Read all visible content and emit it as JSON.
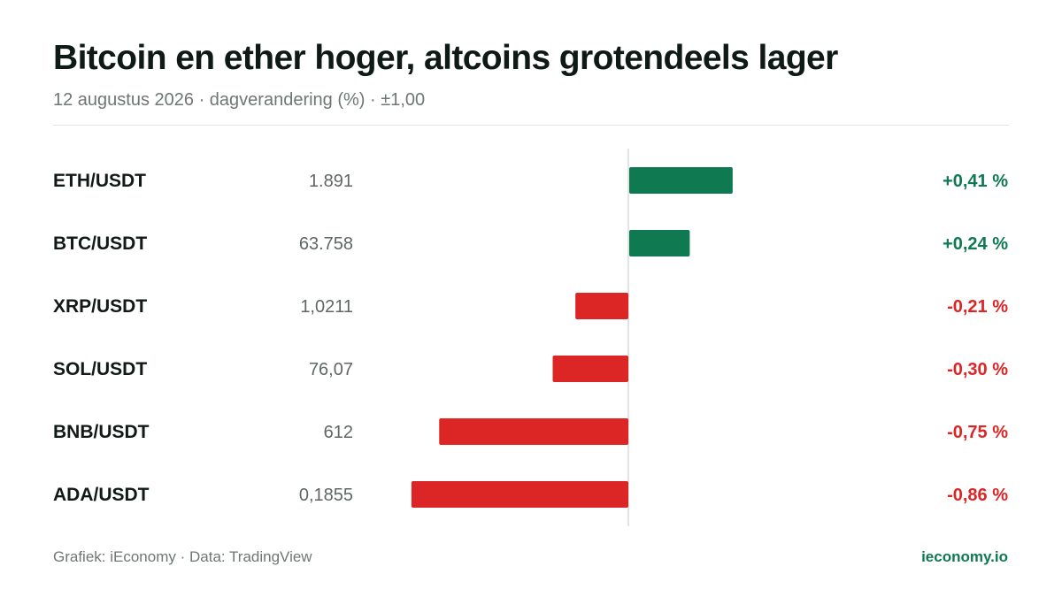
{
  "title": "Bitcoin en ether hoger, altcoins grotendeels lager",
  "subtitle": "12 augustus 2026 · dagverandering (%) · ±1,00",
  "footer": {
    "credit": "Grafiek: iEconomy · Data: TradingView",
    "site": "ieconomy.io"
  },
  "colors": {
    "positive": "#0f7a52",
    "negative": "#dc2626",
    "axis": "#d9dcda"
  },
  "chart_data": {
    "type": "bar",
    "orientation": "horizontal",
    "title": "Bitcoin en ether hoger, altcoins grotendeels lager",
    "subtitle": "12 augustus 2026 · dagverandering (%) · ±1,00",
    "xlim": [
      -1.0,
      1.0
    ],
    "grid": false,
    "categories": [
      "ETH/USDT",
      "BTC/USDT",
      "XRP/USDT",
      "SOL/USDT",
      "BNB/USDT",
      "ADA/USDT"
    ],
    "prices": [
      "1.891",
      "63.758",
      "1,0211",
      "76,07",
      "612",
      "0,1855"
    ],
    "values": [
      0.41,
      0.24,
      -0.21,
      -0.3,
      -0.75,
      -0.86
    ],
    "value_labels": [
      "+0,41 %",
      "+0,24 %",
      "-0,21 %",
      "-0,30 %",
      "-0,75 %",
      "-0,86 %"
    ]
  }
}
